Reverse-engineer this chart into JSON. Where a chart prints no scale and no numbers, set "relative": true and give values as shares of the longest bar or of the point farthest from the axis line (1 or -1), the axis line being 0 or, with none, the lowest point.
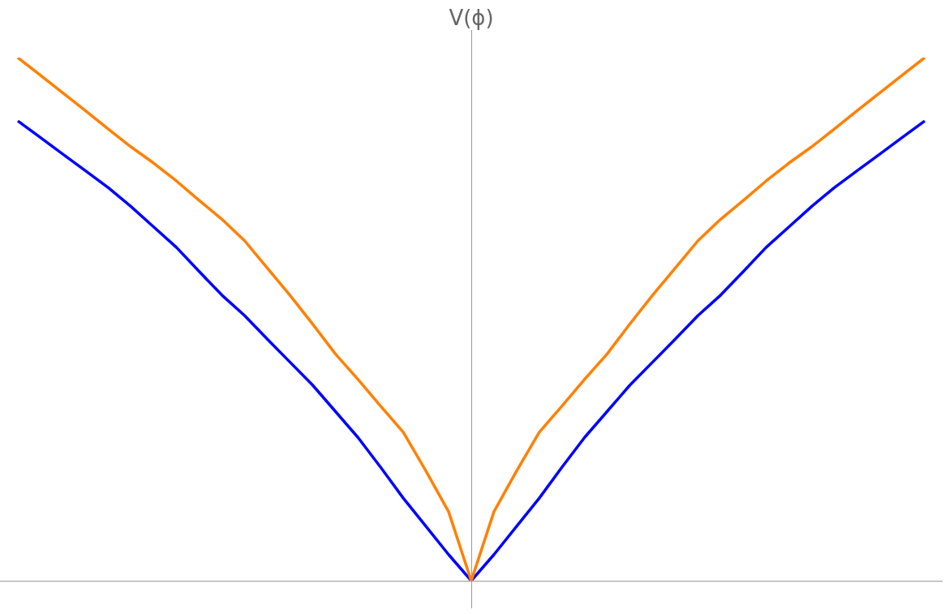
{
  "chart_data": {
    "type": "line",
    "relative": true,
    "ylabel": "V(ϕ)",
    "categories": [
      null,
      null,
      null,
      null,
      null,
      null,
      null,
      null,
      null,
      null,
      null,
      null,
      null,
      null,
      null,
      null,
      null,
      null,
      null,
      null,
      null,
      null,
      null,
      null,
      null,
      null,
      null,
      null,
      null,
      null,
      null,
      null,
      null,
      null,
      null,
      null,
      null,
      null,
      null,
      null,
      null
    ],
    "series": [
      {
        "color": "#ff8000",
        "values": [
          1,
          0.966,
          0.932,
          0.898,
          0.863,
          0.829,
          0.798,
          0.764,
          0.727,
          0.691,
          0.65,
          0.598,
          0.546,
          0.491,
          0.434,
          0.385,
          0.334,
          0.284,
          0.21,
          0.132,
          0,
          0.132,
          0.21,
          0.284,
          0.334,
          0.385,
          0.434,
          0.491,
          0.546,
          0.598,
          0.65,
          0.691,
          0.727,
          0.764,
          0.798,
          0.829,
          0.863,
          0.898,
          0.932,
          0.966,
          1
        ]
      },
      {
        "color": "#0000ff",
        "values": [
          0.879,
          0.847,
          0.815,
          0.783,
          0.751,
          0.715,
          0.676,
          0.637,
          0.591,
          0.546,
          0.507,
          0.462,
          0.418,
          0.374,
          0.324,
          0.274,
          0.217,
          0.158,
          0.104,
          0.05,
          0,
          0.05,
          0.104,
          0.158,
          0.217,
          0.274,
          0.324,
          0.374,
          0.418,
          0.462,
          0.507,
          0.546,
          0.591,
          0.637,
          0.676,
          0.715,
          0.751,
          0.783,
          0.815,
          0.847,
          0.879
        ]
      }
    ]
  }
}
